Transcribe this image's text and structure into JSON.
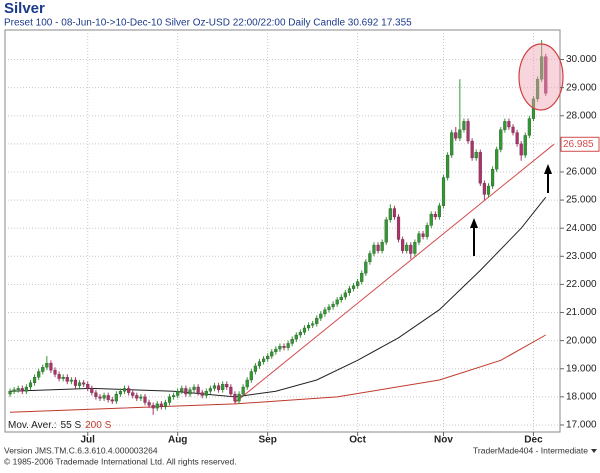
{
  "chart_data": {
    "type": "candlestick",
    "title": "Silver",
    "subtitle": "Preset 100 - 08-Jun-10->10-Dec-10 Silver Oz-USD 22:00/22:00 Daily Candle 30.692 17.355",
    "up_color": "#2f9a2f",
    "down_color": "#b0306a",
    "xlim": [
      -0.5,
      134
    ],
    "xticks": [
      {
        "value": 19,
        "label": "Jul"
      },
      {
        "value": 41,
        "label": "Aug"
      },
      {
        "value": 63,
        "label": "Sep"
      },
      {
        "value": 85,
        "label": "Oct"
      },
      {
        "value": 106,
        "label": "Nov"
      },
      {
        "value": 128,
        "label": "Dec"
      }
    ],
    "ylim": [
      16.75,
      31.05
    ],
    "yticks": [
      {
        "value": 17,
        "label": "17.000"
      },
      {
        "value": 18,
        "label": "18.000"
      },
      {
        "value": 19,
        "label": "19.000"
      },
      {
        "value": 20,
        "label": "20.000"
      },
      {
        "value": 21,
        "label": "21.000"
      },
      {
        "value": 22,
        "label": "22.000"
      },
      {
        "value": 23,
        "label": "23.000"
      },
      {
        "value": 24,
        "label": "24.000"
      },
      {
        "value": 25,
        "label": "25.000"
      },
      {
        "value": 26,
        "label": "26.000"
      },
      {
        "value": 27,
        "label": "27.000"
      },
      {
        "value": 28,
        "label": "28.000"
      },
      {
        "value": 29,
        "label": "29.000"
      },
      {
        "value": 30,
        "label": "30.000"
      }
    ],
    "grid": true,
    "open": [
      18.1,
      18.2,
      18.25,
      18.3,
      18.2,
      18.35,
      18.5,
      18.7,
      18.9,
      19.05,
      19.2,
      18.95,
      18.8,
      18.65,
      18.7,
      18.55,
      18.6,
      18.4,
      18.5,
      18.45,
      18.3,
      18.15,
      18.0,
      17.95,
      18.05,
      17.9,
      17.85,
      18.1,
      18.2,
      18.3,
      18.15,
      18.05,
      17.95,
      18.0,
      17.8,
      17.7,
      17.6,
      17.75,
      17.65,
      17.8,
      18.0,
      18.05,
      18.2,
      18.3,
      18.1,
      18.25,
      18.35,
      18.15,
      18.05,
      18.2,
      18.3,
      18.4,
      18.25,
      18.45,
      18.35,
      18.1,
      17.85,
      18.1,
      18.35,
      18.6,
      18.9,
      19.1,
      19.25,
      19.35,
      19.45,
      19.6,
      19.7,
      19.8,
      19.75,
      19.9,
      20.05,
      20.2,
      20.3,
      20.45,
      20.55,
      20.6,
      20.8,
      20.95,
      21.1,
      21.2,
      21.3,
      21.45,
      21.55,
      21.7,
      21.85,
      21.95,
      22.1,
      22.4,
      22.8,
      23.1,
      23.4,
      23.2,
      23.5,
      24.3,
      24.7,
      24.4,
      23.6,
      23.2,
      23.4,
      23.1,
      23.5,
      23.8,
      23.7,
      24.1,
      24.5,
      24.4,
      24.8,
      25.8,
      26.6,
      27.4,
      27.2,
      27.5,
      27.8,
      27.1,
      26.5,
      26.7,
      25.6,
      25.2,
      25.5,
      26.1,
      26.8,
      27.5,
      27.8,
      27.6,
      27.4,
      27.0,
      26.6,
      27.3,
      27.9,
      28.6,
      29.3,
      30.1
    ],
    "high": [
      18.3,
      18.35,
      18.4,
      18.4,
      18.45,
      18.6,
      18.8,
      19.0,
      19.15,
      19.45,
      19.3,
      19.05,
      18.9,
      18.8,
      18.8,
      18.7,
      18.7,
      18.6,
      18.6,
      18.55,
      18.4,
      18.25,
      18.1,
      18.15,
      18.15,
      18.0,
      18.2,
      18.3,
      18.4,
      18.4,
      18.25,
      18.15,
      18.1,
      18.1,
      17.9,
      17.8,
      17.85,
      17.85,
      17.9,
      18.1,
      18.15,
      18.3,
      18.4,
      18.4,
      18.35,
      18.45,
      18.45,
      18.25,
      18.3,
      18.4,
      18.5,
      18.5,
      18.55,
      18.55,
      18.45,
      18.2,
      18.2,
      18.45,
      18.7,
      19.0,
      19.2,
      19.35,
      19.45,
      19.55,
      19.7,
      19.8,
      19.9,
      19.9,
      20.0,
      20.15,
      20.3,
      20.4,
      20.55,
      20.65,
      20.7,
      20.9,
      21.05,
      21.2,
      21.3,
      21.4,
      21.55,
      21.65,
      21.8,
      21.95,
      22.05,
      22.2,
      22.5,
      22.9,
      23.2,
      23.5,
      23.5,
      23.6,
      24.4,
      24.85,
      24.8,
      24.5,
      23.7,
      23.5,
      23.5,
      23.6,
      23.9,
      23.9,
      24.2,
      24.6,
      24.6,
      24.9,
      25.9,
      26.7,
      27.5,
      27.6,
      29.3,
      27.9,
      27.9,
      27.2,
      26.8,
      26.8,
      25.7,
      25.6,
      26.2,
      26.9,
      27.6,
      27.9,
      27.9,
      27.7,
      27.5,
      27.1,
      27.4,
      28.0,
      28.7,
      29.4,
      30.69,
      30.2
    ],
    "low": [
      18.0,
      18.1,
      18.15,
      18.1,
      18.1,
      18.25,
      18.4,
      18.6,
      18.8,
      18.95,
      18.85,
      18.7,
      18.55,
      18.55,
      18.45,
      18.45,
      18.3,
      18.3,
      18.35,
      18.2,
      18.05,
      17.9,
      17.85,
      17.85,
      17.8,
      17.75,
      17.75,
      18.0,
      18.1,
      18.05,
      17.95,
      17.85,
      17.85,
      17.7,
      17.6,
      17.36,
      17.5,
      17.55,
      17.55,
      17.7,
      17.9,
      17.95,
      18.1,
      18.0,
      18.0,
      18.15,
      18.05,
      17.95,
      17.95,
      18.1,
      18.2,
      18.15,
      18.15,
      18.25,
      18.0,
      17.75,
      17.75,
      18.0,
      18.25,
      18.5,
      18.8,
      19.0,
      19.15,
      19.25,
      19.35,
      19.5,
      19.6,
      19.65,
      19.65,
      19.8,
      19.95,
      20.1,
      20.2,
      20.35,
      20.45,
      20.5,
      20.7,
      20.85,
      21.0,
      21.1,
      21.2,
      21.35,
      21.45,
      21.6,
      21.75,
      21.85,
      22.0,
      22.3,
      22.7,
      23.0,
      23.1,
      23.1,
      23.4,
      24.2,
      24.3,
      23.5,
      23.1,
      23.1,
      22.9,
      23.0,
      23.4,
      23.6,
      23.6,
      24.0,
      24.3,
      24.3,
      24.7,
      25.7,
      26.5,
      27.1,
      27.1,
      27.4,
      27.0,
      26.4,
      26.4,
      25.5,
      25.0,
      25.1,
      25.4,
      26.0,
      26.7,
      27.4,
      27.5,
      27.3,
      26.9,
      26.4,
      26.5,
      27.2,
      27.8,
      28.5,
      29.2,
      28.7
    ],
    "close": [
      18.2,
      18.25,
      18.3,
      18.2,
      18.35,
      18.5,
      18.7,
      18.9,
      19.05,
      19.2,
      18.95,
      18.8,
      18.65,
      18.7,
      18.55,
      18.6,
      18.4,
      18.5,
      18.45,
      18.3,
      18.15,
      18.0,
      17.95,
      18.05,
      17.9,
      17.85,
      18.1,
      18.2,
      18.3,
      18.15,
      18.05,
      17.95,
      18.0,
      17.8,
      17.7,
      17.6,
      17.75,
      17.65,
      17.8,
      18.0,
      18.05,
      18.2,
      18.3,
      18.1,
      18.25,
      18.35,
      18.15,
      18.05,
      18.2,
      18.3,
      18.4,
      18.25,
      18.45,
      18.35,
      18.1,
      17.85,
      18.1,
      18.35,
      18.6,
      18.9,
      19.1,
      19.25,
      19.35,
      19.45,
      19.6,
      19.7,
      19.8,
      19.75,
      19.9,
      20.05,
      20.2,
      20.3,
      20.45,
      20.55,
      20.6,
      20.8,
      20.95,
      21.1,
      21.2,
      21.3,
      21.45,
      21.55,
      21.7,
      21.85,
      21.95,
      22.1,
      22.4,
      22.8,
      23.1,
      23.4,
      23.2,
      23.5,
      24.3,
      24.7,
      24.4,
      23.6,
      23.2,
      23.4,
      23.1,
      23.5,
      23.8,
      23.7,
      24.1,
      24.5,
      24.4,
      24.8,
      25.8,
      26.6,
      27.4,
      27.2,
      27.5,
      27.8,
      27.1,
      26.5,
      26.7,
      25.6,
      25.2,
      25.5,
      26.1,
      26.8,
      27.5,
      27.8,
      27.6,
      27.4,
      27.0,
      26.6,
      27.3,
      27.9,
      28.6,
      29.3,
      30.1,
      28.8
    ],
    "legend_title": "Mov. Aver.:",
    "series": [
      {
        "name": "55 S",
        "color": "#222222",
        "x": [
          0,
          20,
          40,
          55,
          65,
          75,
          85,
          95,
          105,
          115,
          125,
          131
        ],
        "values": [
          18.2,
          18.3,
          18.2,
          18.0,
          18.2,
          18.6,
          19.3,
          20.1,
          21.1,
          22.5,
          24.0,
          25.1
        ]
      },
      {
        "name": "200 S",
        "color": "#c0392b",
        "x": [
          0,
          55,
          80,
          105,
          120,
          131
        ],
        "values": [
          17.45,
          17.75,
          18.0,
          18.6,
          19.3,
          20.2
        ]
      }
    ],
    "trendline": {
      "color": "#d24b4b",
      "x": [
        55,
        133
      ],
      "values": [
        17.8,
        26.985
      ]
    }
  },
  "footer": {
    "version": "Version  JMS.TM.C.6.3.610.4.000003264",
    "copyright": "© 1985-2006 Trademade International Ltd.  All rights reserved.",
    "user": "TraderMade404 - Intermediate"
  }
}
